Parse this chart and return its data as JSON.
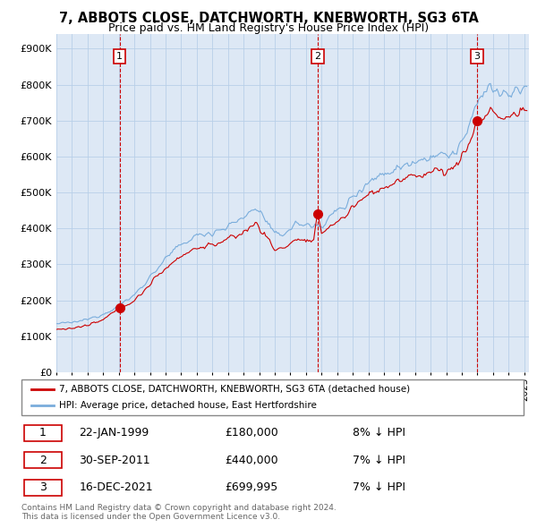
{
  "title": "7, ABBOTS CLOSE, DATCHWORTH, KNEBWORTH, SG3 6TA",
  "subtitle": "Price paid vs. HM Land Registry's House Price Index (HPI)",
  "title_fontsize": 10.5,
  "subtitle_fontsize": 9,
  "ytick_values": [
    0,
    100000,
    200000,
    300000,
    400000,
    500000,
    600000,
    700000,
    800000,
    900000
  ],
  "ylim": [
    0,
    940000
  ],
  "xlim_start": 1995.0,
  "xlim_end": 2025.3,
  "sale_dates": [
    1999.055,
    2011.747,
    2021.956
  ],
  "sale_prices": [
    180000,
    440000,
    699995
  ],
  "sale_labels": [
    "1",
    "2",
    "3"
  ],
  "legend_label_red": "7, ABBOTS CLOSE, DATCHWORTH, KNEBWORTH, SG3 6TA (detached house)",
  "legend_label_blue": "HPI: Average price, detached house, East Hertfordshire",
  "table_rows": [
    [
      "1",
      "22-JAN-1999",
      "£180,000",
      "8% ↓ HPI"
    ],
    [
      "2",
      "30-SEP-2011",
      "£440,000",
      "7% ↓ HPI"
    ],
    [
      "3",
      "16-DEC-2021",
      "£699,995",
      "7% ↓ HPI"
    ]
  ],
  "footnote": "Contains HM Land Registry data © Crown copyright and database right 2024.\nThis data is licensed under the Open Government Licence v3.0.",
  "line_color_red": "#cc0000",
  "line_color_blue": "#7aaddc",
  "vline_color": "#cc0000",
  "dot_color_red": "#cc0000",
  "background_color": "#ffffff",
  "chart_bg_color": "#dde8f5",
  "grid_color": "#b8cfe8"
}
